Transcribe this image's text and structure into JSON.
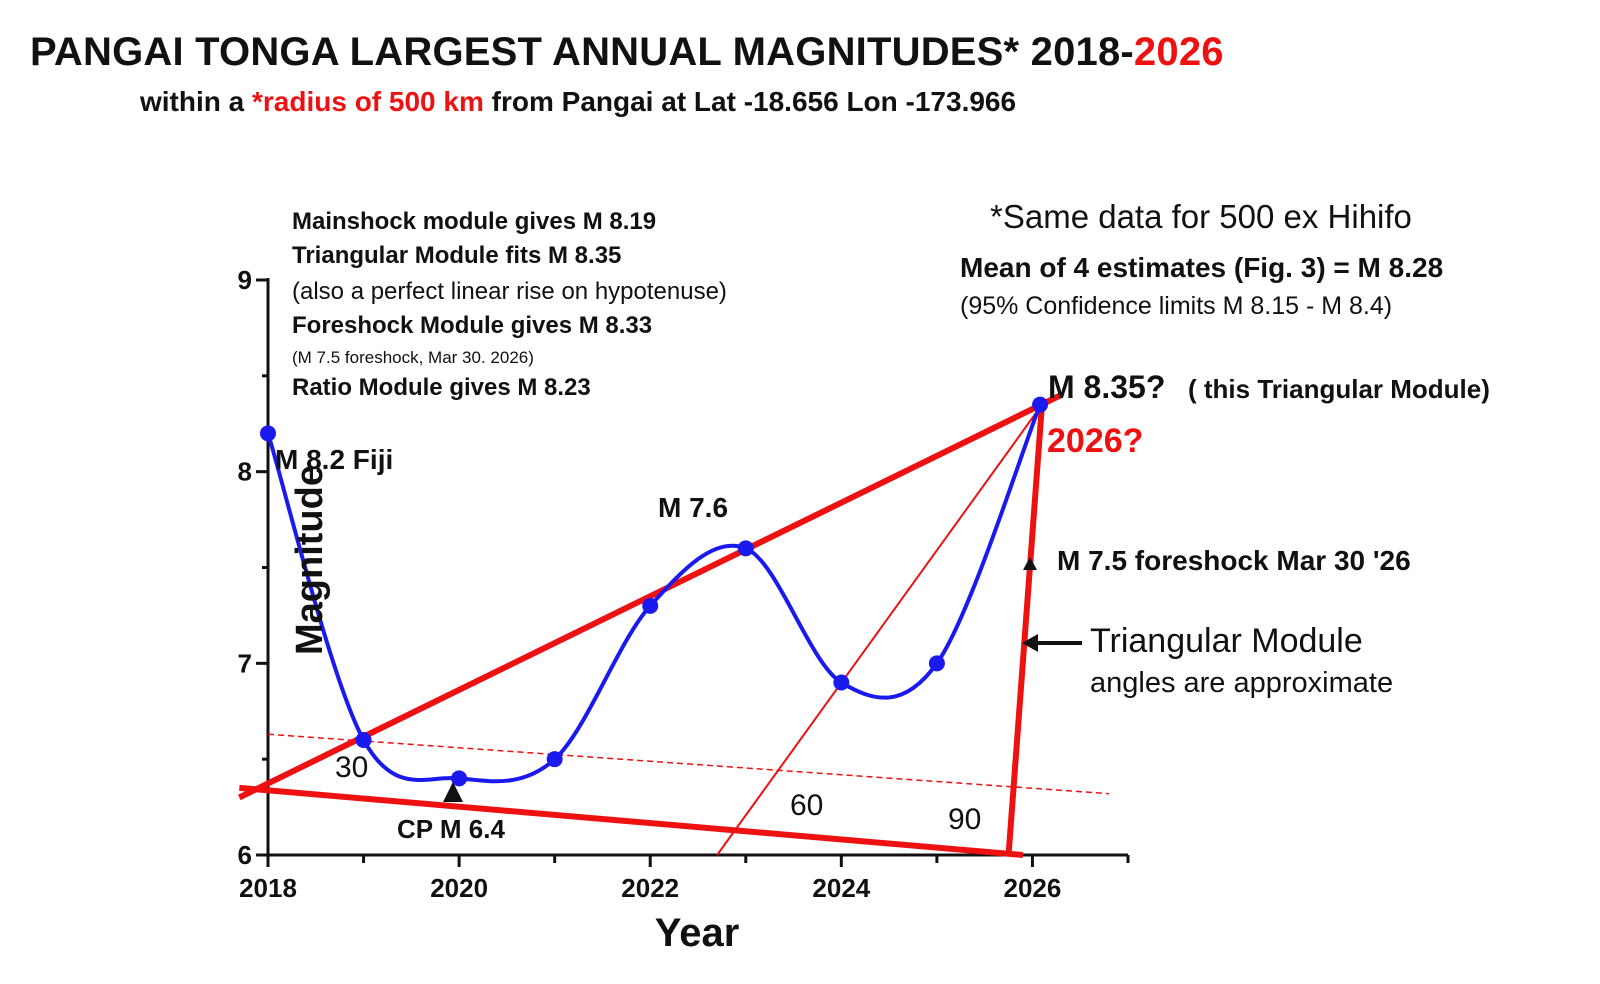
{
  "title": {
    "main": "PANGAI TONGA LARGEST ANNUAL MAGNITUDES* 2018-",
    "highlight": "2026"
  },
  "subtitle": {
    "pre": "within a ",
    "highlight": "*radius of 500 km",
    "post": " from Pangai at Lat -18.656 Lon -173.966"
  },
  "notes_left": {
    "line1": "Mainshock module gives M 8.19",
    "line2": "Triangular Module fits M 8.35",
    "line3": "(also a perfect linear rise on hypotenuse)",
    "line4": "Foreshock Module gives M 8.33",
    "line5": "(M 7.5 foreshock, Mar 30. 2026)",
    "line6": "Ratio Module gives M 8.23"
  },
  "notes_right": {
    "line1": "*Same data for 500 ex Hihifo",
    "line2": "Mean of 4 estimates (Fig. 3) = M 8.28",
    "line3": "(95% Confidence limits M 8.15 - M 8.4)"
  },
  "annotations": {
    "fiji": "M 8.2 Fiji",
    "m76": "M 7.6",
    "cp": "CP M 6.4",
    "m835": "M 8.35?",
    "m835_suffix": "( this Triangular Module)",
    "q2026": "2026?",
    "foreshock": "M 7.5 foreshock Mar 30 '26",
    "tri_module": "Triangular Module",
    "angles": "angles are approximate",
    "ang30": "30",
    "ang60": "60",
    "ang90": "90"
  },
  "colors": {
    "series": "#1a1aee",
    "triangle": "#ee1111",
    "text": "#111111"
  },
  "chart_data": {
    "type": "line",
    "xlabel": "Year",
    "ylabel": "Magnitude",
    "xlim": [
      2018,
      2027
    ],
    "ylim": [
      6,
      9
    ],
    "xticks": [
      2018,
      2020,
      2022,
      2024,
      2026
    ],
    "yticks": [
      6,
      7,
      8,
      9
    ],
    "series": [
      {
        "x": [
          2018,
          2019,
          2020,
          2021,
          2022,
          2023,
          2024,
          2025,
          2026.08
        ],
        "values": [
          8.2,
          6.6,
          6.4,
          6.5,
          7.3,
          7.6,
          6.9,
          7.0,
          8.35
        ]
      }
    ],
    "triangle": {
      "hypotenuse": [
        [
          2017.7,
          6.3
        ],
        [
          2026.3,
          8.4
        ]
      ],
      "base": [
        [
          2017.7,
          6.35
        ],
        [
          2025.9,
          6.0
        ]
      ],
      "vertical": [
        [
          2025.75,
          6.0
        ],
        [
          2026.1,
          8.35
        ]
      ],
      "angle_line": [
        [
          2022.7,
          6.0
        ],
        [
          2026.1,
          8.35
        ]
      ],
      "dashed_line": [
        [
          2018,
          6.63
        ],
        [
          2026.8,
          6.32
        ]
      ]
    }
  }
}
